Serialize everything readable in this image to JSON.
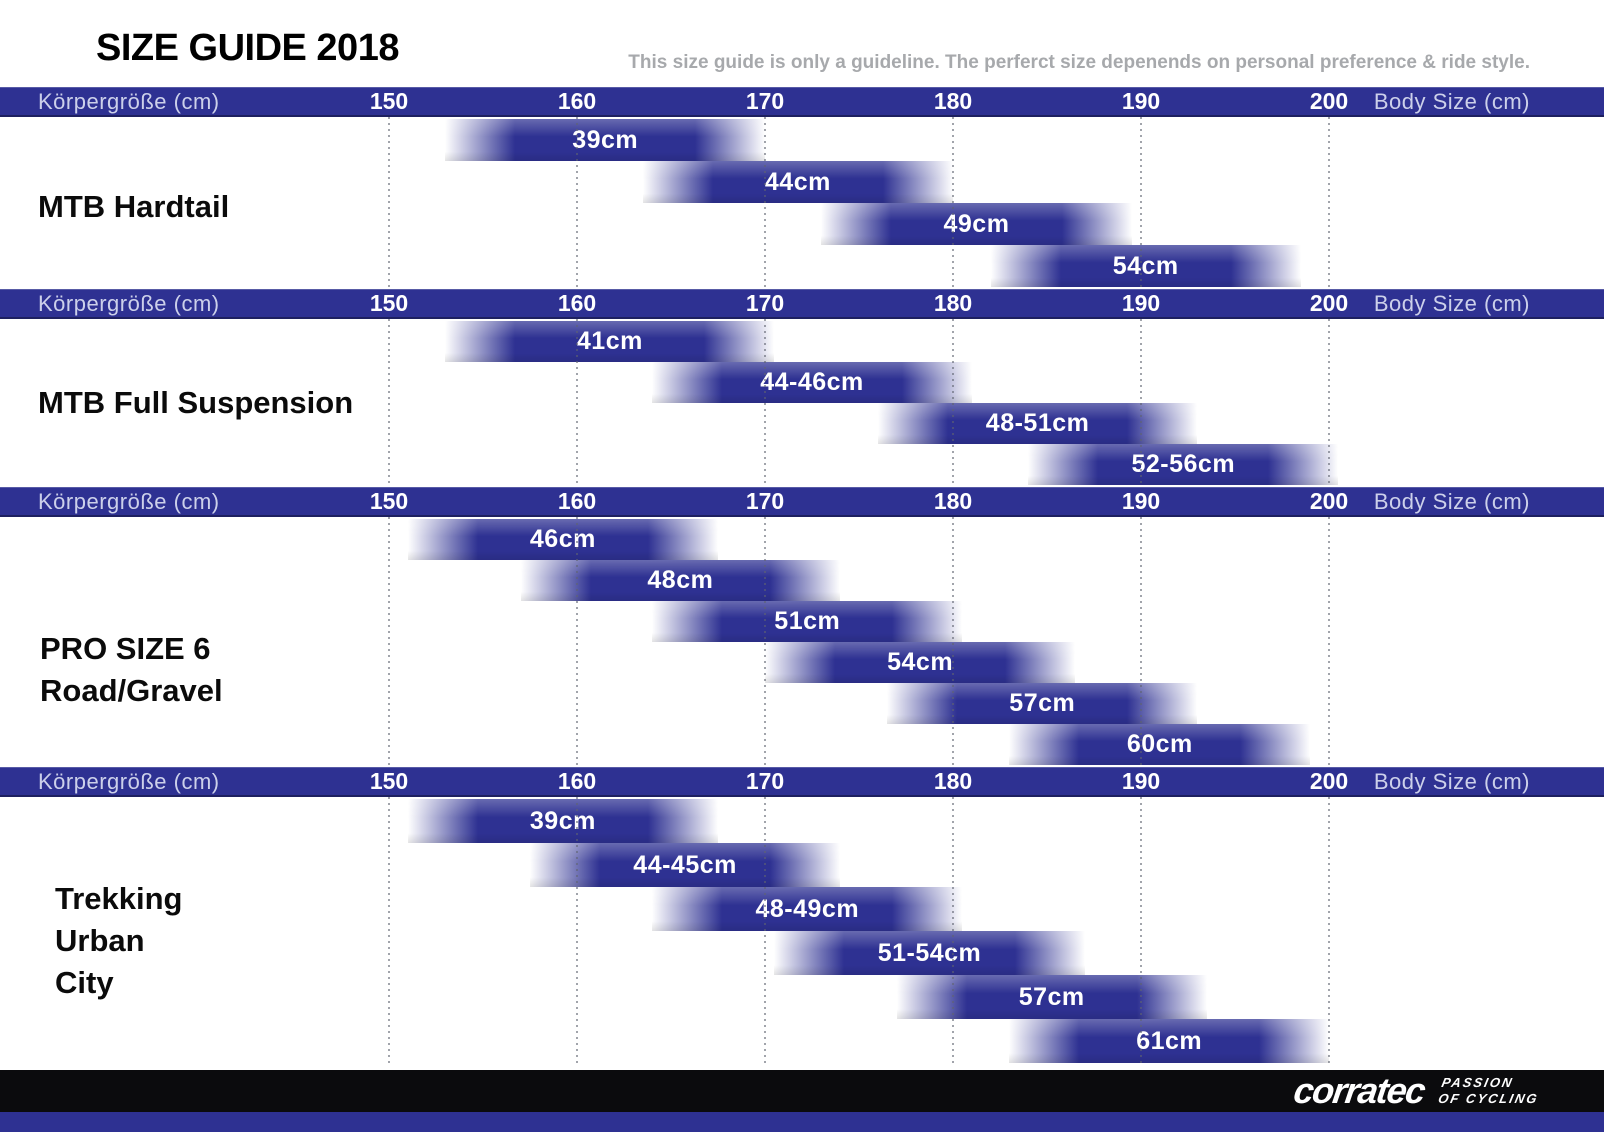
{
  "page": {
    "title": "SIZE GUIDE 2018",
    "subtitle": "This size guide is only a guideline. The perferct size depenends on personal preference & ride style."
  },
  "colors": {
    "bar_blue": "#2e3192",
    "header_blue": "#2e3192",
    "footer_black": "#0b0b0d",
    "bottom_bar_blue": "#2e3192",
    "subtitle_gray": "#a7a9ac",
    "header_label_lavender": "#ccd0ea",
    "tick_white": "#ffffff"
  },
  "footer": {
    "brand": "corratec",
    "tagline": [
      "PASSION",
      "OF CYCLING"
    ]
  },
  "chart_data": {
    "type": "bar",
    "subtype": "horizontal-range",
    "title": "SIZE GUIDE 2018",
    "x_axis": {
      "label_left": "Körpergröße (cm)",
      "label_right": "Body Size (cm)",
      "ticks": [
        150,
        160,
        170,
        180,
        190,
        200
      ],
      "range": [
        150,
        200
      ],
      "unit": "cm",
      "grid": "dotted-vertical"
    },
    "legend_position": "none",
    "sections": [
      {
        "title_lines": [
          "MTB Hardtail"
        ],
        "bars": [
          {
            "label": "39cm",
            "from": 153,
            "to": 170
          },
          {
            "label": "44cm",
            "from": 163.5,
            "to": 180
          },
          {
            "label": "49cm",
            "from": 173,
            "to": 189.5
          },
          {
            "label": "54cm",
            "from": 182,
            "to": 198.5
          }
        ]
      },
      {
        "title_lines": [
          "MTB Full Suspension"
        ],
        "bars": [
          {
            "label": "41cm",
            "from": 153,
            "to": 170.5
          },
          {
            "label": "44-46cm",
            "from": 164,
            "to": 181
          },
          {
            "label": "48-51cm",
            "from": 176,
            "to": 193
          },
          {
            "label": "52-56cm",
            "from": 184,
            "to": 200.5
          }
        ]
      },
      {
        "title_lines": [
          "PRO SIZE 6",
          "Road/Gravel"
        ],
        "bars": [
          {
            "label": "46cm",
            "from": 151,
            "to": 167.5
          },
          {
            "label": "48cm",
            "from": 157,
            "to": 174
          },
          {
            "label": "51cm",
            "from": 164,
            "to": 180.5
          },
          {
            "label": "54cm",
            "from": 170,
            "to": 186.5
          },
          {
            "label": "57cm",
            "from": 176.5,
            "to": 193
          },
          {
            "label": "60cm",
            "from": 183,
            "to": 199
          }
        ]
      },
      {
        "title_lines": [
          "Trekking",
          "Urban",
          "City"
        ],
        "bars": [
          {
            "label": "39cm",
            "from": 151,
            "to": 167.5
          },
          {
            "label": "44-45cm",
            "from": 157.5,
            "to": 174
          },
          {
            "label": "48-49cm",
            "from": 164,
            "to": 180.5
          },
          {
            "label": "51-54cm",
            "from": 170.5,
            "to": 187
          },
          {
            "label": "57cm",
            "from": 177,
            "to": 193.5
          },
          {
            "label": "61cm",
            "from": 183,
            "to": 200
          }
        ]
      }
    ]
  }
}
